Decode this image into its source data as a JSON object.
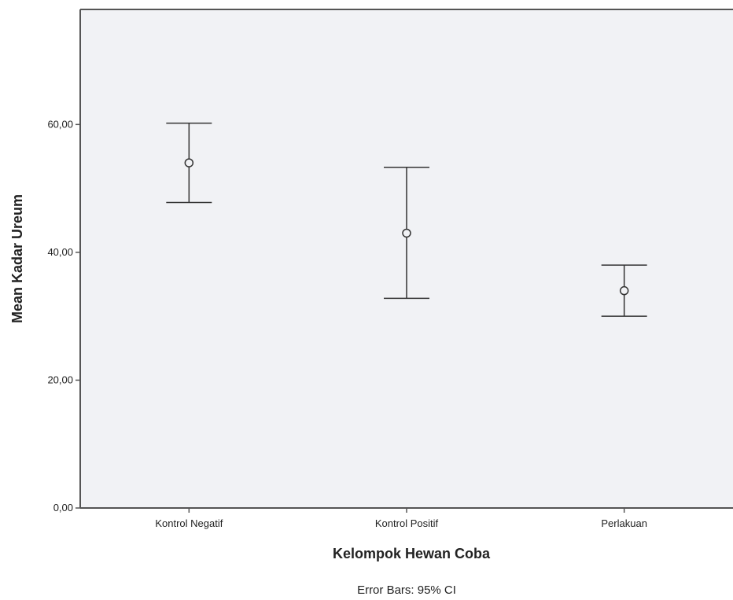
{
  "chart_data": {
    "type": "scatter",
    "subtype": "error-bar",
    "categories": [
      "Kontrol Negatif",
      "Kontrol Positif",
      "Perlakuan"
    ],
    "means": [
      54.0,
      43.0,
      34.0
    ],
    "lower": [
      47.8,
      32.8,
      30.0
    ],
    "upper": [
      60.2,
      53.3,
      38.0
    ],
    "ylim": [
      0,
      78
    ],
    "yticks": [
      0,
      20,
      40,
      60
    ],
    "ytick_labels": [
      "0,00",
      "20,00",
      "40,00",
      "60,00"
    ],
    "xlabel": "Kelompok Hewan Coba",
    "ylabel": "Mean Kadar Ureum",
    "footnote": "Error Bars: 95% CI",
    "grid": false,
    "colors": {
      "plot_bg": "#f1f2f5",
      "line": "#333333",
      "axis": "#555555"
    }
  }
}
